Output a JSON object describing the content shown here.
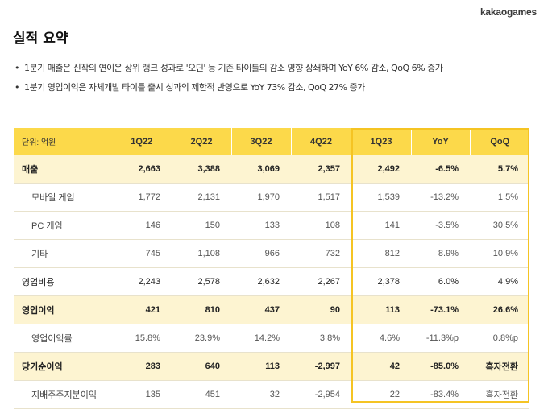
{
  "brand": {
    "logo_text": "kakaogames"
  },
  "page_title": "실적 요약",
  "bullets": [
    "1분기 매출은 신작의 연이은 상위 랭크 성과로 '오딘' 등 기존 타이틀의 감소 영향 상쇄하며 YoY 6% 감소, QoQ 6% 증가",
    "1분기 영업이익은 자체개발 타이틀 출시 성과의 제한적 반영으로 YoY 73% 감소, QoQ 27% 증가"
  ],
  "table": {
    "unit_label": "단위: 억원",
    "columns": [
      "1Q22",
      "2Q22",
      "3Q22",
      "4Q22",
      "1Q23",
      "YoY",
      "QoQ"
    ],
    "rows": [
      {
        "label": "매출",
        "values": [
          "2,663",
          "3,388",
          "3,069",
          "2,357",
          "2,492",
          "-6.5%",
          "5.7%"
        ]
      },
      {
        "label": "모바일 게임",
        "values": [
          "1,772",
          "2,131",
          "1,970",
          "1,517",
          "1,539",
          "-13.2%",
          "1.5%"
        ]
      },
      {
        "label": "PC 게임",
        "values": [
          "146",
          "150",
          "133",
          "108",
          "141",
          "-3.5%",
          "30.5%"
        ]
      },
      {
        "label": "기타",
        "values": [
          "745",
          "1,108",
          "966",
          "732",
          "812",
          "8.9%",
          "10.9%"
        ]
      },
      {
        "label": "영업비용",
        "values": [
          "2,243",
          "2,578",
          "2,632",
          "2,267",
          "2,378",
          "6.0%",
          "4.9%"
        ]
      },
      {
        "label": "영업이익",
        "values": [
          "421",
          "810",
          "437",
          "90",
          "113",
          "-73.1%",
          "26.6%"
        ]
      },
      {
        "label": "영업이익률",
        "values": [
          "15.8%",
          "23.9%",
          "14.2%",
          "3.8%",
          "4.6%",
          "-11.3%p",
          "0.8%p"
        ]
      },
      {
        "label": "당기순이익",
        "values": [
          "283",
          "640",
          "113",
          "-2,997",
          "42",
          "-85.0%",
          "흑자전환"
        ]
      },
      {
        "label": "지배주주지분이익",
        "values": [
          "135",
          "451",
          "32",
          "-2,954",
          "22",
          "-83.4%",
          "흑자전환"
        ]
      }
    ]
  },
  "colors": {
    "header_yellow": "#fcd94a",
    "highlight_row": "#fdf4d1",
    "frame_border": "#f5c423"
  }
}
